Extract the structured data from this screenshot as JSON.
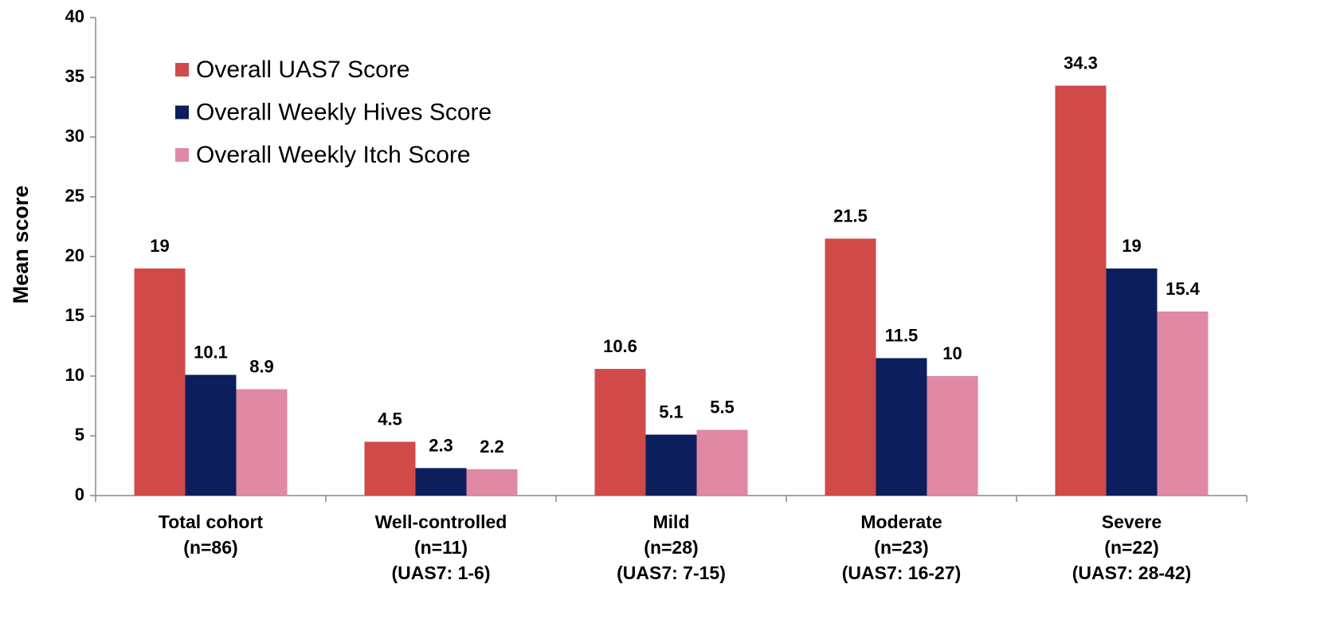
{
  "chart_data": {
    "type": "bar",
    "y_label": "Mean score",
    "categories": [
      "Total cohort\n(n=86)",
      "Well-controlled\n(n=11)\n(UAS7: 1-6)",
      "Mild\n(n=28)\n(UAS7: 7-15)",
      "Moderate\n(n=23)\n(UAS7: 16-27)",
      "Severe\n(n=22)\n(UAS7: 28-42)"
    ],
    "series": [
      {
        "name": "Overall UAS7 Score",
        "color": "#d04a4a",
        "values": [
          19,
          4.5,
          10.6,
          21.5,
          34.3
        ]
      },
      {
        "name": "Overall Weekly Hives Score",
        "color": "#0c1f5c",
        "values": [
          10.1,
          2.3,
          5.1,
          11.5,
          19
        ]
      },
      {
        "name": "Overall Weekly Itch Score",
        "color": "#e088a4",
        "values": [
          8.9,
          2.2,
          5.5,
          10,
          15.4
        ]
      }
    ],
    "ylim": [
      0,
      40
    ],
    "yticks": [
      0,
      5,
      10,
      15,
      20,
      25,
      30,
      35,
      40
    ],
    "legend": "upper-left",
    "grid": false
  }
}
